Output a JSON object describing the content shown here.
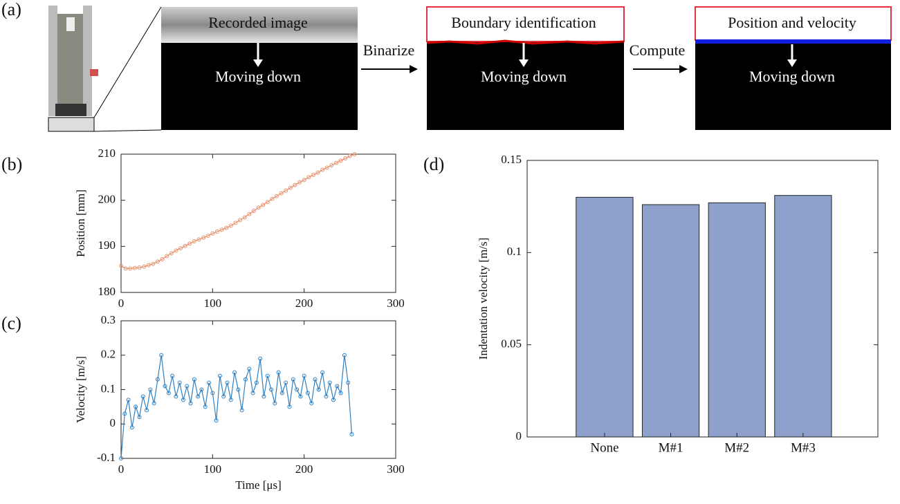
{
  "panel_labels": [
    "(a)",
    "(b)",
    "(c)",
    "(d)"
  ],
  "panel_a": {
    "images": [
      {
        "title": "Recorded image",
        "caption": "Moving down"
      },
      {
        "title": "Boundary identification",
        "caption": "Moving down"
      },
      {
        "title": "Position and velocity",
        "caption": "Moving down"
      }
    ],
    "steps": [
      "Binarize",
      "Compute"
    ]
  },
  "chart_data": [
    {
      "type": "line",
      "ylabel": "Position [mm]",
      "color": "#e8906c",
      "marker": "circle",
      "x": [
        0,
        5,
        10,
        15,
        20,
        25,
        30,
        35,
        40,
        45,
        50,
        55,
        60,
        65,
        70,
        75,
        80,
        85,
        90,
        95,
        100,
        105,
        110,
        115,
        120,
        125,
        130,
        135,
        140,
        145,
        150,
        155,
        160,
        165,
        170,
        175,
        180,
        185,
        190,
        195,
        200,
        205,
        210,
        215,
        220,
        225,
        230,
        235,
        240,
        245,
        250,
        255
      ],
      "values": [
        185.8,
        185.2,
        185.2,
        185.3,
        185.4,
        185.6,
        185.9,
        186.2,
        186.7,
        187.2,
        187.9,
        188.5,
        189.1,
        189.6,
        190.1,
        190.6,
        191.1,
        191.5,
        191.9,
        192.3,
        192.8,
        193.2,
        193.6,
        194.0,
        194.5,
        195.1,
        195.7,
        196.3,
        197.0,
        197.7,
        198.4,
        199.0,
        199.6,
        200.3,
        200.9,
        201.5,
        202.1,
        202.7,
        203.3,
        203.9,
        204.4,
        205.0,
        205.5,
        206.0,
        206.6,
        207.1,
        207.6,
        208.1,
        208.6,
        209.1,
        209.6,
        210.0
      ],
      "xlim": [
        0,
        300
      ],
      "xticks": [
        0,
        100,
        200,
        300
      ],
      "ylim": [
        180,
        210
      ],
      "yticks": [
        180,
        190,
        200,
        210
      ]
    },
    {
      "type": "line",
      "xlabel": "Time [μs]",
      "ylabel": "Velocity [m/s]",
      "color": "#2f7fc1",
      "marker": "circle",
      "x": [
        0,
        4,
        8,
        12,
        16,
        20,
        24,
        28,
        32,
        36,
        40,
        44,
        48,
        52,
        56,
        60,
        64,
        68,
        72,
        76,
        80,
        84,
        88,
        92,
        96,
        100,
        104,
        108,
        112,
        116,
        120,
        124,
        128,
        132,
        136,
        140,
        144,
        148,
        152,
        156,
        160,
        164,
        168,
        172,
        176,
        180,
        184,
        188,
        192,
        196,
        200,
        204,
        208,
        212,
        216,
        220,
        224,
        228,
        232,
        236,
        240,
        244,
        248,
        252
      ],
      "values": [
        -0.1,
        0.03,
        0.07,
        -0.01,
        0.05,
        0.02,
        0.08,
        0.04,
        0.1,
        0.06,
        0.13,
        0.2,
        0.11,
        0.09,
        0.14,
        0.08,
        0.12,
        0.07,
        0.11,
        0.06,
        0.13,
        0.08,
        0.1,
        0.05,
        0.12,
        0.09,
        0.01,
        0.14,
        0.08,
        0.12,
        0.07,
        0.15,
        0.1,
        0.04,
        0.13,
        0.16,
        0.09,
        0.12,
        0.19,
        0.08,
        0.14,
        0.1,
        0.06,
        0.15,
        0.09,
        0.12,
        0.05,
        0.13,
        0.1,
        0.08,
        0.14,
        0.09,
        0.06,
        0.13,
        0.1,
        0.15,
        0.08,
        0.12,
        0.07,
        0.11,
        0.09,
        0.2,
        0.12,
        -0.03
      ],
      "xlim": [
        0,
        300
      ],
      "xticks": [
        0,
        100,
        200,
        300
      ],
      "ylim": [
        -0.1,
        0.3
      ],
      "yticks": [
        -0.1,
        0,
        0.1,
        0.2,
        0.3
      ]
    },
    {
      "type": "bar",
      "ylabel": "Indentation velocity [m/s]",
      "color": "#8ea1cc",
      "categories": [
        "None",
        "M#1",
        "M#2",
        "M#3"
      ],
      "values": [
        0.13,
        0.126,
        0.127,
        0.131
      ],
      "ylim": [
        0,
        0.15
      ],
      "yticks": [
        0,
        0.05,
        0.1,
        0.15
      ]
    }
  ]
}
